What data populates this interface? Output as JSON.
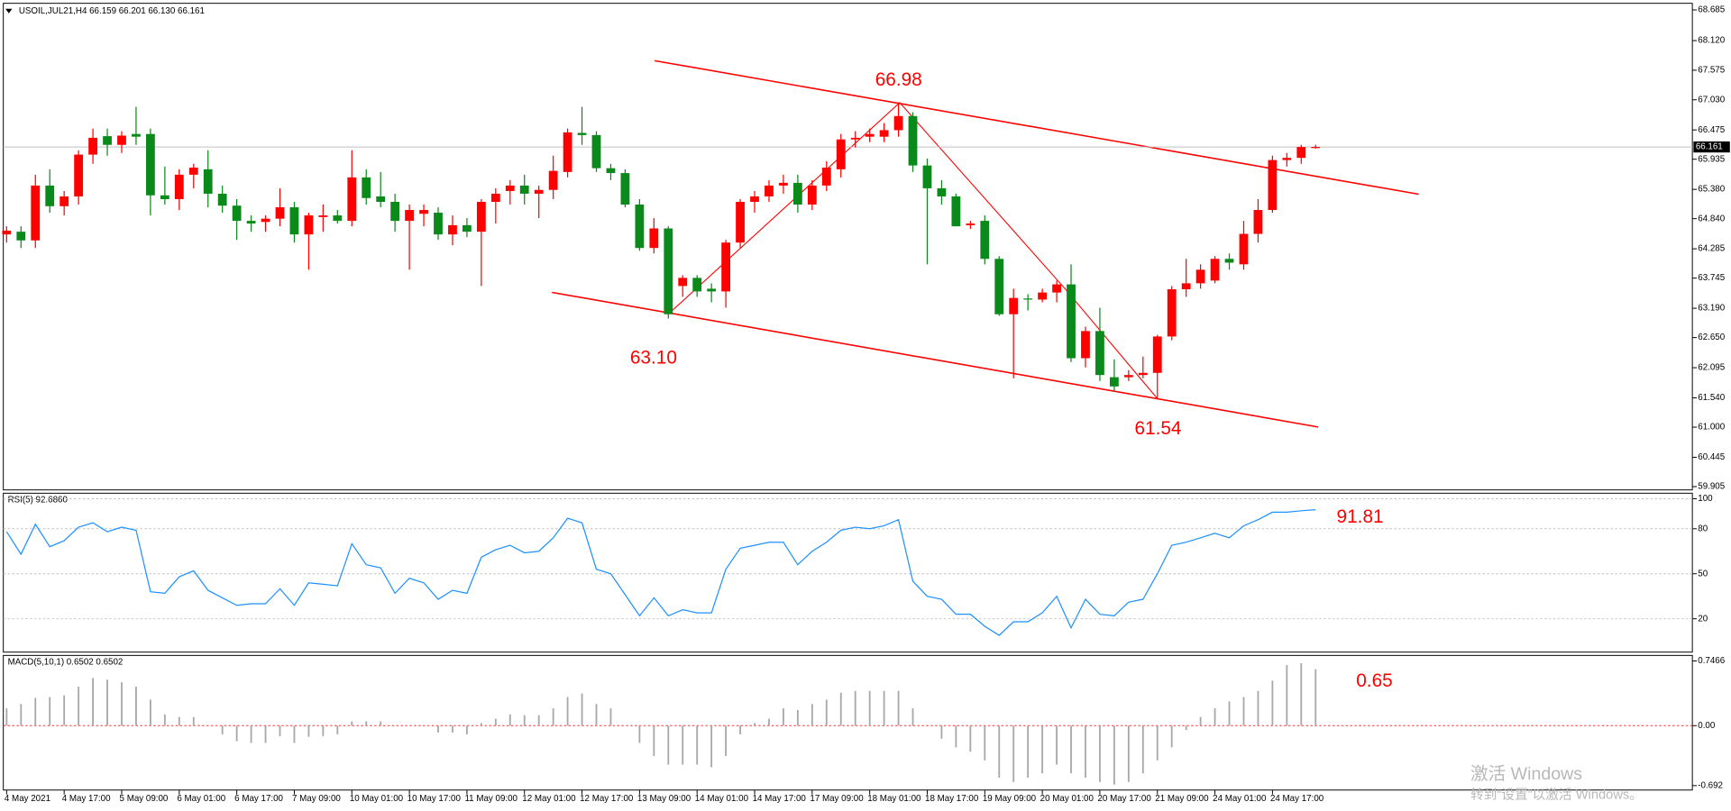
{
  "chart_data": [
    {
      "type": "candlestick",
      "title": "USOIL,JUL21,H4  66.159 66.201 66.130 66.161",
      "categories": [
        "4 May 2021",
        null,
        null,
        null,
        "4 May 17:00",
        null,
        null,
        null,
        "5 May 09:00",
        null,
        null,
        null,
        "6 May 01:00",
        null,
        null,
        null,
        "6 May 17:00",
        null,
        null,
        null,
        "7 May 09:00",
        null,
        null,
        null,
        "10 May 01:00",
        null,
        null,
        null,
        "10 May 17:00",
        null,
        null,
        null,
        "11 May 09:00",
        null,
        null,
        null,
        "12 May 01:00",
        null,
        null,
        null,
        "12 May 17:00",
        null,
        null,
        null,
        "13 May 09:00",
        null,
        null,
        null,
        "14 May 01:00",
        null,
        null,
        null,
        "14 May 17:00",
        null,
        null,
        null,
        "17 May 09:00",
        null,
        null,
        null,
        "18 May 01:00",
        null,
        null,
        null,
        "18 May 17:00",
        null,
        null,
        null,
        "19 May 09:00",
        null,
        null,
        null,
        "20 May 01:00",
        null,
        null,
        null,
        "20 May 17:00",
        null,
        null,
        null,
        "21 May 09:00",
        null,
        null,
        null,
        "24 May 01:00",
        null,
        null,
        null,
        "24 May 17:00",
        null,
        null,
        null
      ],
      "open": [
        64.55,
        64.6,
        64.44,
        65.45,
        65.07,
        65.25,
        66.02,
        66.36,
        66.2,
        66.4,
        66.4,
        65.27,
        65.2,
        65.65,
        65.75,
        65.3,
        65.08,
        64.8,
        64.78,
        64.84,
        65.05,
        64.55,
        64.87,
        64.9,
        64.8,
        65.6,
        65.25,
        65.15,
        64.8,
        64.93,
        64.95,
        64.55,
        64.72,
        64.6,
        65.15,
        65.35,
        65.45,
        65.3,
        65.37,
        65.7,
        66.42,
        66.38,
        65.77,
        65.68,
        65.1,
        64.3,
        64.66,
        63.6,
        63.75,
        63.55,
        63.5,
        64.4,
        65.15,
        65.25,
        65.45,
        65.5,
        65.1,
        65.45,
        65.75,
        66.3,
        66.35,
        66.35,
        66.47,
        66.73,
        65.82,
        65.4,
        65.25,
        64.72,
        64.8,
        64.1,
        63.08,
        63.37,
        63.35,
        63.48,
        63.63,
        62.27,
        62.77,
        61.92,
        61.92,
        61.96,
        62.0,
        62.67,
        63.54,
        63.65,
        63.7,
        64.1,
        64.0,
        64.56,
        65.0,
        65.92,
        65.96,
        66.159
      ],
      "high": [
        64.7,
        64.7,
        65.65,
        65.75,
        65.35,
        66.1,
        66.5,
        66.5,
        66.45,
        66.9,
        66.5,
        65.8,
        65.75,
        65.85,
        66.1,
        65.45,
        65.2,
        64.9,
        64.9,
        65.4,
        65.15,
        64.95,
        65.1,
        65.0,
        66.1,
        65.75,
        65.7,
        65.3,
        65.1,
        65.1,
        65.05,
        64.9,
        64.85,
        65.2,
        65.4,
        65.55,
        65.65,
        65.45,
        66.0,
        66.5,
        66.9,
        66.45,
        65.85,
        65.75,
        65.2,
        64.85,
        64.7,
        63.8,
        63.8,
        63.65,
        64.45,
        65.2,
        65.35,
        65.55,
        65.65,
        65.65,
        65.55,
        65.9,
        66.4,
        66.45,
        66.5,
        66.6,
        66.98,
        66.8,
        65.95,
        65.55,
        65.3,
        64.8,
        64.9,
        64.15,
        63.55,
        63.45,
        63.55,
        63.7,
        64.0,
        62.85,
        63.2,
        62.25,
        62.05,
        62.3,
        62.7,
        63.6,
        64.1,
        64.0,
        64.15,
        64.2,
        64.8,
        65.2,
        66.0,
        66.05,
        66.2,
        66.201
      ],
      "low": [
        64.4,
        64.3,
        64.3,
        64.95,
        64.9,
        65.1,
        65.85,
        66.0,
        66.05,
        66.2,
        64.9,
        65.1,
        65.0,
        65.4,
        65.05,
        64.95,
        64.45,
        64.6,
        64.6,
        64.7,
        64.4,
        63.9,
        64.6,
        64.75,
        64.7,
        65.1,
        65.05,
        64.6,
        63.9,
        64.7,
        64.45,
        64.35,
        64.5,
        63.6,
        64.75,
        65.1,
        65.1,
        64.85,
        65.2,
        65.6,
        66.2,
        65.7,
        65.55,
        65.05,
        64.25,
        64.2,
        63.0,
        63.4,
        63.4,
        63.3,
        63.2,
        64.3,
        64.95,
        65.15,
        65.3,
        64.95,
        65.0,
        65.35,
        65.6,
        66.15,
        66.25,
        66.25,
        66.35,
        65.7,
        64.0,
        65.1,
        64.7,
        64.65,
        64.0,
        63.05,
        61.9,
        63.15,
        63.3,
        63.3,
        62.2,
        62.1,
        61.85,
        61.65,
        61.85,
        61.9,
        61.54,
        62.6,
        63.4,
        63.55,
        63.65,
        63.9,
        63.9,
        64.4,
        64.95,
        65.8,
        65.85,
        66.13
      ],
      "close": [
        64.62,
        64.44,
        65.45,
        65.07,
        65.25,
        66.02,
        66.33,
        66.2,
        66.37,
        66.35,
        65.27,
        65.2,
        65.65,
        65.78,
        65.3,
        65.08,
        64.8,
        64.75,
        64.84,
        65.05,
        64.55,
        64.9,
        64.9,
        64.8,
        65.6,
        65.22,
        65.15,
        64.8,
        65.0,
        65.0,
        64.55,
        64.72,
        64.6,
        65.15,
        65.3,
        65.45,
        65.3,
        65.37,
        65.72,
        66.43,
        66.38,
        65.77,
        65.68,
        65.1,
        64.3,
        64.66,
        63.08,
        63.75,
        63.5,
        63.5,
        64.4,
        65.15,
        65.25,
        65.45,
        65.5,
        65.1,
        65.45,
        65.78,
        66.3,
        66.33,
        66.4,
        66.47,
        66.73,
        65.82,
        65.4,
        65.25,
        64.7,
        64.75,
        64.1,
        63.08,
        63.38,
        63.35,
        63.48,
        63.63,
        62.27,
        62.77,
        61.96,
        61.75,
        61.96,
        62.0,
        62.67,
        63.54,
        63.65,
        63.9,
        64.1,
        64.03,
        64.56,
        65.0,
        65.92,
        65.96,
        66.16,
        66.161
      ],
      "up_color": "#ff0000",
      "down_color": "#0a8a1a",
      "ylim": [
        59.905,
        68.685
      ],
      "yticks": [
        68.685,
        {
          "value": 68.12,
          "label": "68.120"
        },
        67.575,
        {
          "value": 67.03,
          "label": "67.030"
        },
        66.475,
        65.935,
        {
          "value": 65.38,
          "label": "65.380"
        },
        {
          "value": 64.84,
          "label": "64.840"
        },
        64.285,
        63.745,
        {
          "value": 63.19,
          "label": "63.190"
        },
        {
          "value": 62.65,
          "label": "62.650"
        },
        62.095,
        {
          "value": 61.54,
          "label": "61.540"
        },
        {
          "value": 61,
          "label": "61.000"
        },
        60.445,
        59.905
      ],
      "last_price": 66.161,
      "annotations": [
        "66.98",
        "63.10",
        "61.54"
      ]
    },
    {
      "type": "line",
      "title": "RSI(5) 92.6860",
      "values": [
        78,
        63,
        83,
        68,
        72,
        81,
        84,
        78,
        81,
        79,
        38,
        37,
        48,
        52,
        39,
        34,
        29,
        30,
        30,
        40,
        29,
        44,
        43,
        42,
        70,
        56,
        54,
        37,
        47,
        44,
        33,
        39,
        37,
        61,
        66,
        69,
        64,
        65,
        74,
        87,
        84,
        53,
        50,
        36,
        22,
        34,
        22,
        26,
        24,
        24,
        53,
        67,
        69,
        71,
        71,
        56,
        65,
        71,
        79,
        81,
        80,
        82,
        86,
        45,
        35,
        33,
        23,
        23,
        15,
        9,
        18,
        18,
        24,
        35,
        14,
        33,
        23,
        22,
        31,
        33,
        50,
        69,
        71,
        74,
        77,
        74,
        82,
        86,
        91,
        91,
        92,
        92.686
      ],
      "color": "#1e90ff",
      "ylim": [
        0,
        100
      ],
      "yticks": [
        20,
        50,
        80,
        100
      ],
      "grid": true,
      "annotation": "91.81"
    },
    {
      "type": "bar",
      "title": "MACD(5,10,1) 0.6502 0.6502",
      "values": [
        0.2,
        0.25,
        0.32,
        0.33,
        0.35,
        0.45,
        0.55,
        0.53,
        0.5,
        0.45,
        0.3,
        0.13,
        0.1,
        0.1,
        0.0,
        -0.1,
        -0.18,
        -0.2,
        -0.2,
        -0.12,
        -0.2,
        -0.13,
        -0.12,
        -0.1,
        0.05,
        0.05,
        0.05,
        0.0,
        0.0,
        0.0,
        -0.08,
        -0.08,
        -0.1,
        0.03,
        0.08,
        0.13,
        0.12,
        0.12,
        0.2,
        0.33,
        0.37,
        0.25,
        0.2,
        0.0,
        -0.2,
        -0.35,
        -0.45,
        -0.45,
        -0.45,
        -0.48,
        -0.35,
        -0.1,
        0.03,
        0.08,
        0.2,
        0.18,
        0.25,
        0.3,
        0.38,
        0.4,
        0.4,
        0.4,
        0.4,
        0.2,
        0.0,
        -0.15,
        -0.25,
        -0.3,
        -0.4,
        -0.6,
        -0.65,
        -0.6,
        -0.55,
        -0.45,
        -0.55,
        -0.6,
        -0.65,
        -0.68,
        -0.65,
        -0.55,
        -0.4,
        -0.25,
        -0.05,
        0.1,
        0.2,
        0.28,
        0.33,
        0.4,
        0.52,
        0.7,
        0.72,
        0.6502
      ],
      "color": "#a8a8a8",
      "zero_color": "#ff3030",
      "ylim": [
        -0.692,
        0.7466
      ],
      "yticks": [
        0.7466,
        {
          "value": 0,
          "label": "0.00"
        },
        -0.692
      ],
      "annotation": "0.65"
    }
  ],
  "watermark": {
    "line1": "激活 Windows",
    "line2": "转到“设置”以激活 Windows。"
  }
}
